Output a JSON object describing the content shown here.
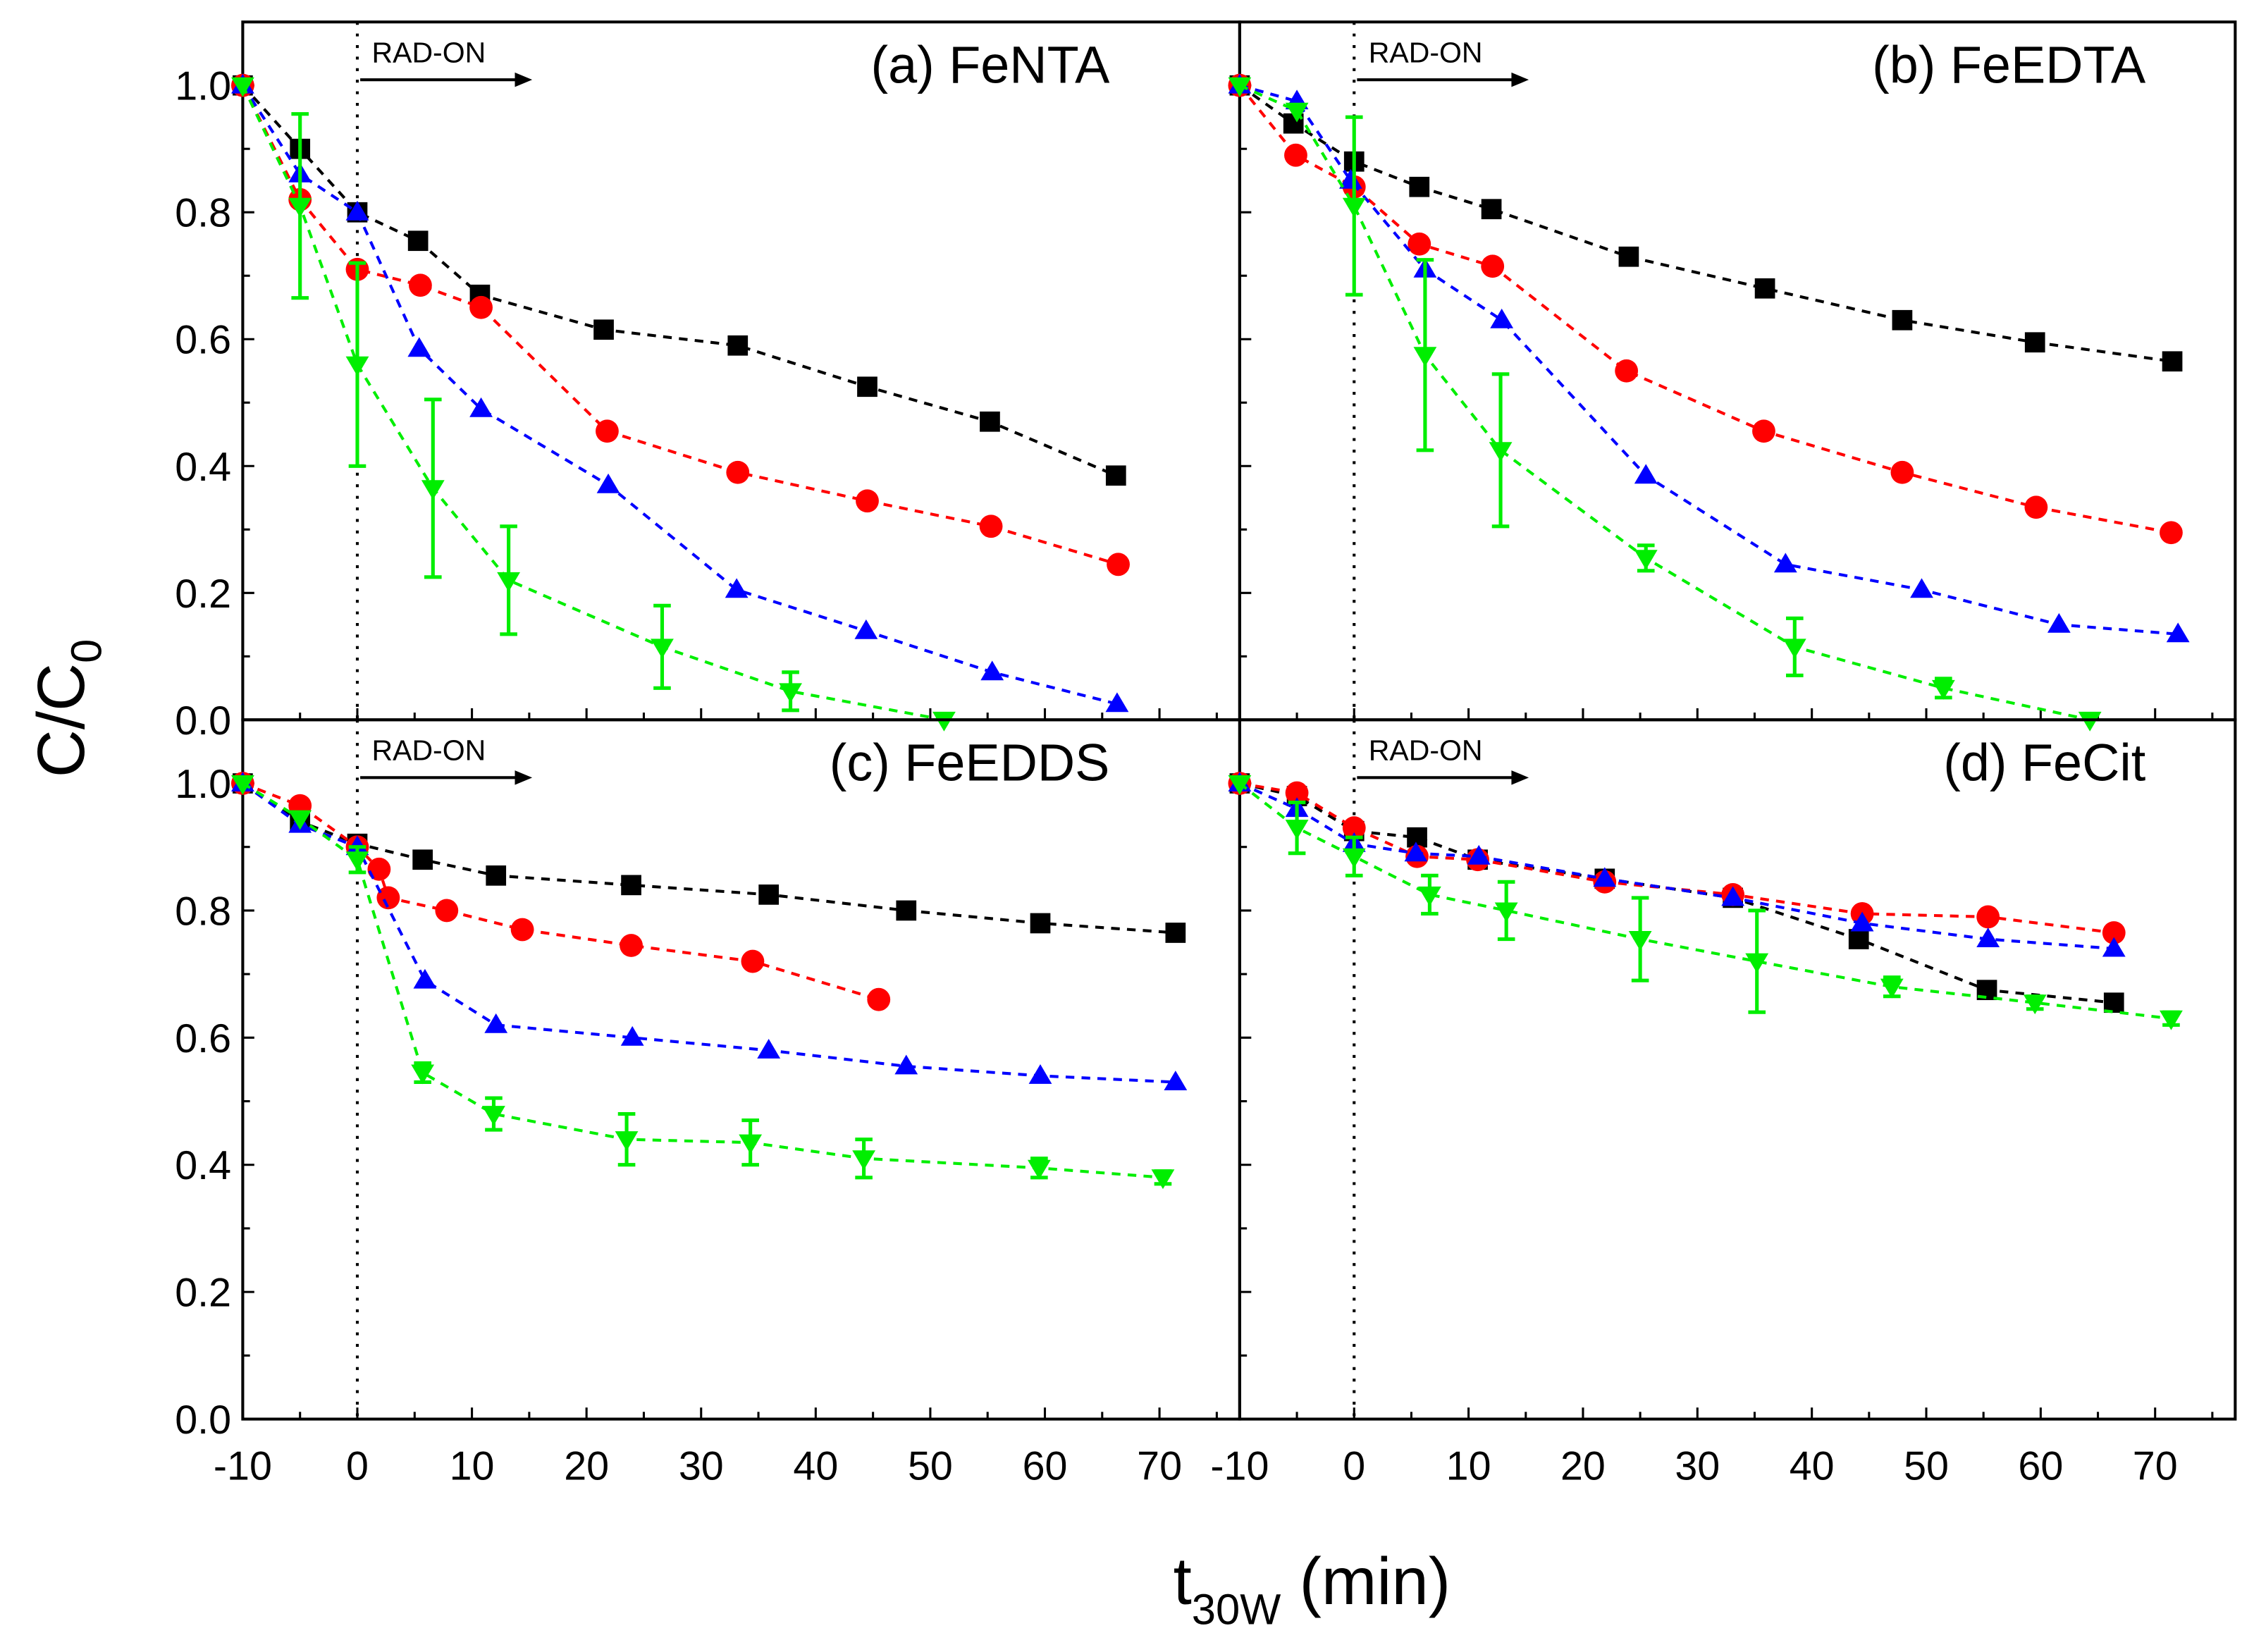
{
  "chart_data": {
    "type": "scatter",
    "ylabel_main": "C/C",
    "ylabel_sub": "0",
    "xlabel_main": "t",
    "xlabel_sub": "30W",
    "xlabel_unit": " (min)",
    "xlim": [
      -10,
      77
    ],
    "ylim": [
      0,
      1.1
    ],
    "x_ticks": [
      "-10",
      "0",
      "10",
      "20",
      "30",
      "40",
      "50",
      "60",
      "70"
    ],
    "y_ticks": [
      "0.0",
      "0.2",
      "0.4",
      "0.6",
      "0.8",
      "1.0"
    ],
    "annotation": "RAD-ON",
    "colors": {
      "black": "#000000",
      "red": "#ff0000",
      "blue": "#0000ff",
      "green": "#00ee00"
    },
    "panels": [
      {
        "title": "(a) FeNTA",
        "series": [
          {
            "marker": "square",
            "color": "black",
            "x": [
              -10,
              -5,
              0,
              5.3,
              10.7,
              21.5,
              33.2,
              44.5,
              55.2,
              66.2
            ],
            "y": [
              1.0,
              0.9,
              0.8,
              0.755,
              0.67,
              0.615,
              0.59,
              0.525,
              0.47,
              0.385
            ]
          },
          {
            "marker": "circle",
            "color": "red",
            "x": [
              -10,
              -5,
              0,
              5.5,
              10.8,
              21.8,
              33.2,
              44.5,
              55.3,
              66.4
            ],
            "y": [
              1.0,
              0.82,
              0.71,
              0.685,
              0.65,
              0.455,
              0.39,
              0.345,
              0.305,
              0.245
            ]
          },
          {
            "marker": "triangle-up",
            "color": "blue",
            "x": [
              -10,
              -5,
              0,
              5.4,
              10.8,
              21.9,
              33.1,
              44.4,
              55.4,
              66.3
            ],
            "y": [
              1.0,
              0.86,
              0.8,
              0.585,
              0.49,
              0.37,
              0.205,
              0.14,
              0.075,
              0.025
            ]
          },
          {
            "marker": "triangle-down",
            "color": "green",
            "x": [
              -10,
              -5,
              0,
              6.6,
              13.2,
              26.6,
              37.8,
              51.2
            ],
            "y": [
              1.0,
              0.81,
              0.56,
              0.365,
              0.22,
              0.115,
              0.045,
              0.0
            ],
            "err": [
              0,
              0.145,
              0.16,
              0.14,
              0.085,
              0.065,
              0.03,
              0
            ]
          }
        ]
      },
      {
        "title": "(b) FeEDTA",
        "series": [
          {
            "marker": "square",
            "color": "black",
            "x": [
              -10,
              -5.3,
              0,
              5.7,
              12,
              24,
              35.9,
              47.9,
              59.5,
              71.5
            ],
            "y": [
              1.0,
              0.94,
              0.88,
              0.84,
              0.805,
              0.73,
              0.68,
              0.63,
              0.595,
              0.565
            ]
          },
          {
            "marker": "circle",
            "color": "red",
            "x": [
              -10,
              -5.1,
              0,
              5.7,
              12.1,
              23.8,
              35.8,
              47.9,
              59.6,
              71.4
            ],
            "y": [
              1.0,
              0.89,
              0.84,
              0.75,
              0.715,
              0.55,
              0.455,
              0.39,
              0.335,
              0.295
            ]
          },
          {
            "marker": "triangle-up",
            "color": "blue",
            "x": [
              -10,
              -5,
              -0.3,
              6.2,
              12.9,
              25.5,
              37.7,
              49.6,
              61.6,
              72
            ],
            "y": [
              1.0,
              0.975,
              0.85,
              0.71,
              0.63,
              0.385,
              0.245,
              0.205,
              0.15,
              0.135
            ]
          },
          {
            "marker": "triangle-down",
            "color": "green",
            "x": [
              -10,
              -5,
              0,
              6.2,
              12.8,
              25.5,
              38.5,
              51.5,
              64.3
            ],
            "y": [
              1.0,
              0.96,
              0.81,
              0.575,
              0.425,
              0.255,
              0.115,
              0.05,
              0.0
            ],
            "err": [
              0,
              0,
              0.14,
              0.15,
              0.12,
              0.02,
              0.045,
              0.015,
              0
            ]
          }
        ]
      },
      {
        "title": "(c) FeEDDS",
        "series": [
          {
            "marker": "square",
            "color": "black",
            "x": [
              -10,
              -5,
              0,
              5.7,
              12.1,
              23.9,
              35.9,
              47.9,
              59.6,
              71.4
            ],
            "y": [
              1.0,
              0.94,
              0.905,
              0.88,
              0.855,
              0.84,
              0.825,
              0.8,
              0.78,
              0.765
            ]
          },
          {
            "marker": "circle",
            "color": "red",
            "x": [
              -10,
              -5,
              0,
              1.9,
              2.7,
              7.8,
              14.4,
              23.9,
              34.5,
              45.5
            ],
            "y": [
              1.0,
              0.965,
              0.9,
              0.865,
              0.82,
              0.8,
              0.77,
              0.745,
              0.72,
              0.66
            ]
          },
          {
            "marker": "triangle-up",
            "color": "blue",
            "x": [
              -10,
              -5,
              0,
              5.9,
              12.1,
              24,
              35.9,
              47.9,
              59.6,
              71.4
            ],
            "y": [
              1.0,
              0.935,
              0.9,
              0.69,
              0.62,
              0.6,
              0.58,
              0.555,
              0.54,
              0.53
            ]
          },
          {
            "marker": "triangle-down",
            "color": "green",
            "x": [
              -10,
              -5,
              0,
              5.7,
              11.9,
              23.5,
              34.3,
              44.2,
              59.5,
              70.3
            ],
            "y": [
              1.0,
              0.945,
              0.88,
              0.545,
              0.48,
              0.44,
              0.435,
              0.41,
              0.395,
              0.38
            ],
            "err": [
              0,
              0,
              0.02,
              0.015,
              0.025,
              0.04,
              0.035,
              0.03,
              0.015,
              0.01
            ]
          }
        ]
      },
      {
        "title": "(d) FeCit",
        "series": [
          {
            "marker": "square",
            "color": "black",
            "x": [
              -10,
              -5,
              0,
              5.5,
              10.8,
              21.9,
              33.1,
              44.1,
              55.3,
              66.4
            ],
            "y": [
              1.0,
              0.98,
              0.925,
              0.915,
              0.88,
              0.85,
              0.82,
              0.755,
              0.675,
              0.655
            ]
          },
          {
            "marker": "circle",
            "color": "red",
            "x": [
              -10,
              -5,
              0,
              5.5,
              10.8,
              21.9,
              33.1,
              44.4,
              55.4,
              66.4
            ],
            "y": [
              1.0,
              0.985,
              0.93,
              0.885,
              0.88,
              0.845,
              0.825,
              0.795,
              0.79,
              0.765
            ]
          },
          {
            "marker": "triangle-up",
            "color": "blue",
            "x": [
              -10,
              -5,
              0,
              5.4,
              10.9,
              21.9,
              33.1,
              44.4,
              55.4,
              66.4
            ],
            "y": [
              1.0,
              0.96,
              0.905,
              0.89,
              0.885,
              0.85,
              0.82,
              0.78,
              0.755,
              0.74
            ]
          },
          {
            "marker": "triangle-down",
            "color": "green",
            "x": [
              -10,
              -5,
              0,
              6.6,
              13.3,
              25,
              35.2,
              47,
              59.5,
              71.4
            ],
            "y": [
              1.0,
              0.93,
              0.885,
              0.825,
              0.8,
              0.755,
              0.72,
              0.68,
              0.655,
              0.63
            ],
            "err": [
              0,
              0.04,
              0.03,
              0.03,
              0.045,
              0.065,
              0.08,
              0.015,
              0.01,
              0.01
            ]
          }
        ]
      }
    ]
  }
}
